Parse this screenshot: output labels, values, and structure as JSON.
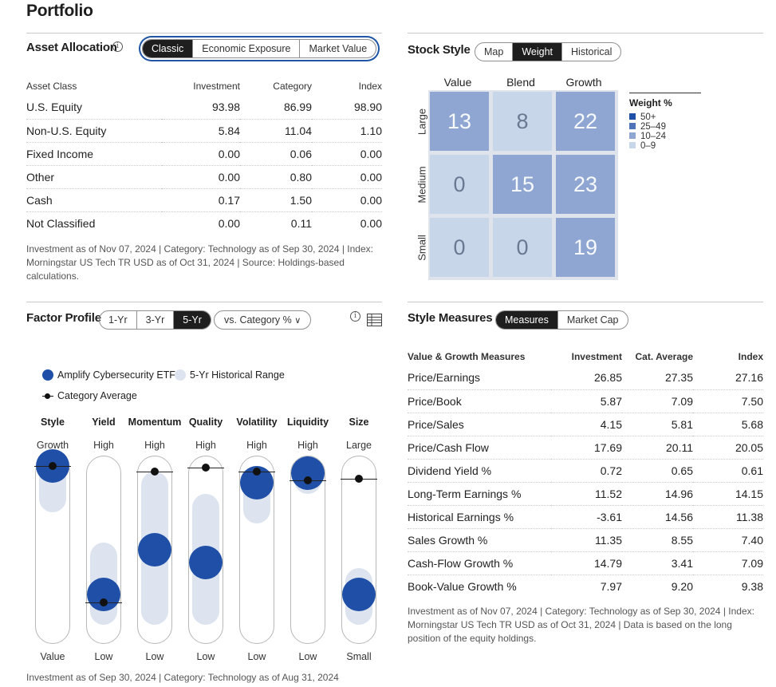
{
  "page_title": "Portfolio",
  "asset_allocation": {
    "title": "Asset Allocation",
    "tabs": [
      "Classic",
      "Economic Exposure",
      "Market Value"
    ],
    "headers": [
      "Asset Class",
      "Investment",
      "Category",
      "Index"
    ],
    "rows": [
      [
        "U.S. Equity",
        "93.98",
        "86.99",
        "98.90"
      ],
      [
        "Non-U.S. Equity",
        "5.84",
        "11.04",
        "1.10"
      ],
      [
        "Fixed Income",
        "0.00",
        "0.06",
        "0.00"
      ],
      [
        "Other",
        "0.00",
        "0.80",
        "0.00"
      ],
      [
        "Cash",
        "0.17",
        "1.50",
        "0.00"
      ],
      [
        "Not Classified",
        "0.00",
        "0.11",
        "0.00"
      ]
    ],
    "note": "Investment as of Nov 07, 2024 | Category: Technology as of Sep 30, 2024 | Index: Morningstar US Tech TR USD as of Oct 31, 2024 | Source: Holdings-based calculations."
  },
  "stock_style": {
    "title": "Stock Style",
    "tabs": [
      "Map",
      "Weight",
      "Historical"
    ],
    "columns": [
      "Value",
      "Blend",
      "Growth"
    ],
    "rows": [
      "Large",
      "Medium",
      "Small"
    ],
    "cells": [
      [
        "13",
        "8",
        "22"
      ],
      [
        "0",
        "15",
        "23"
      ],
      [
        "0",
        "0",
        "19"
      ]
    ],
    "legend_title": "Weight %",
    "legend": [
      {
        "label": "50+",
        "color": "#1f4fa6"
      },
      {
        "label": "25–49",
        "color": "#4f73b8"
      },
      {
        "label": "10–24",
        "color": "#8ea6d1"
      },
      {
        "label": "0–9",
        "color": "#c8d6ea"
      }
    ]
  },
  "factor_profile": {
    "title": "Factor Profile",
    "periods": [
      "1-Yr",
      "3-Yr",
      "5-Yr"
    ],
    "compare": "vs. Category %",
    "legend_fund": "Amplify Cybersecurity ETF",
    "legend_range": "5-Yr Historical Range",
    "legend_cat": "Category Average",
    "factors": [
      {
        "name": "Style",
        "top": "Growth",
        "bottom": "Value",
        "fund": 0.95,
        "cat": 0.95,
        "range": [
          0.7,
          1.0
        ]
      },
      {
        "name": "Yield",
        "top": "High",
        "bottom": "Low",
        "fund": 0.26,
        "cat": 0.22,
        "range": [
          0.1,
          0.54
        ]
      },
      {
        "name": "Momentum",
        "top": "High",
        "bottom": "Low",
        "fund": 0.5,
        "cat": 0.92,
        "range": [
          0.1,
          0.92
        ]
      },
      {
        "name": "Quality",
        "top": "High",
        "bottom": "Low",
        "fund": 0.43,
        "cat": 0.94,
        "range": [
          0.1,
          0.8
        ]
      },
      {
        "name": "Volatility",
        "top": "High",
        "bottom": "Low",
        "fund": 0.86,
        "cat": 0.92,
        "range": [
          0.64,
          0.95
        ]
      },
      {
        "name": "Liquidity",
        "top": "High",
        "bottom": "Low",
        "fund": 0.91,
        "cat": 0.87,
        "range": [
          0.8,
          0.99
        ]
      },
      {
        "name": "Size",
        "top": "Large",
        "bottom": "Small",
        "fund": 0.26,
        "cat": 0.88,
        "range": [
          0.1,
          0.4
        ]
      }
    ],
    "note": "Investment as of Sep 30, 2024 | Category: Technology as of Aug 31, 2024"
  },
  "style_measures": {
    "title": "Style Measures",
    "tabs": [
      "Measures",
      "Market Cap"
    ],
    "headers": [
      "Value & Growth Measures",
      "Investment",
      "Cat. Average",
      "Index"
    ],
    "rows": [
      [
        "Price/Earnings",
        "26.85",
        "27.35",
        "27.16"
      ],
      [
        "Price/Book",
        "5.87",
        "7.09",
        "7.50"
      ],
      [
        "Price/Sales",
        "4.15",
        "5.81",
        "5.68"
      ],
      [
        "Price/Cash Flow",
        "17.69",
        "20.11",
        "20.05"
      ],
      [
        "Dividend Yield %",
        "0.72",
        "0.65",
        "0.61"
      ],
      [
        "Long-Term Earnings %",
        "11.52",
        "14.96",
        "14.15"
      ],
      [
        "Historical Earnings %",
        "-3.61",
        "14.56",
        "11.38"
      ],
      [
        "Sales Growth %",
        "11.35",
        "8.55",
        "7.40"
      ],
      [
        "Cash-Flow Growth %",
        "14.79",
        "3.41",
        "7.09"
      ],
      [
        "Book-Value Growth %",
        "7.97",
        "9.20",
        "9.38"
      ]
    ],
    "note": "Investment as of Nov 07, 2024 | Category: Technology as of Sep 30, 2024 | Index: Morningstar US Tech TR USD as of Oct 31, 2024 | Data is based on the long position of the equity holdings."
  }
}
